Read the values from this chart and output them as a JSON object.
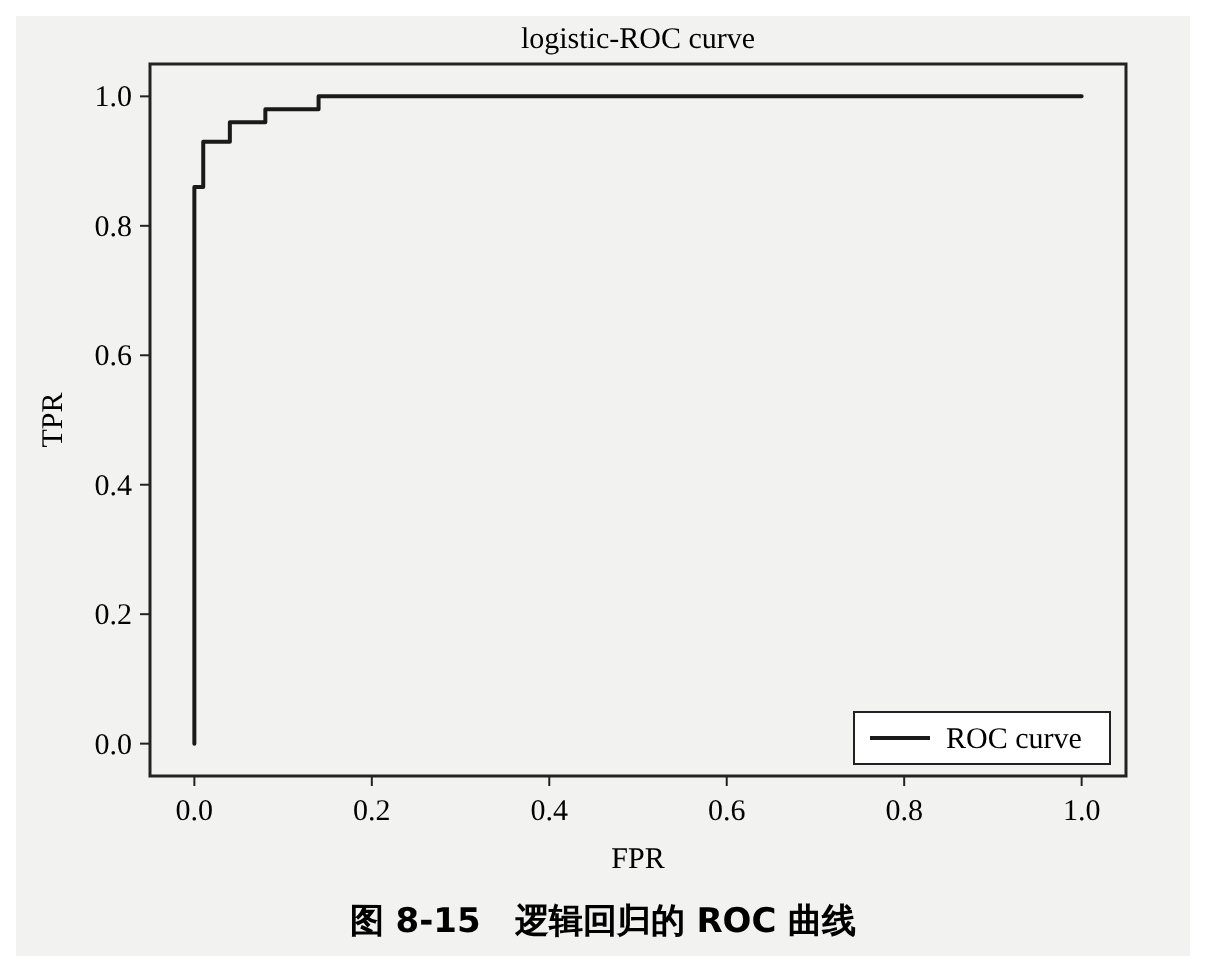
{
  "chart_data": {
    "type": "line",
    "title": "logistic-ROC curve",
    "xlabel": "FPR",
    "ylabel": "TPR",
    "series": [
      {
        "name": "ROC curve",
        "color": "#1a1a1a",
        "x": [
          0,
          0,
          0.01,
          0.01,
          0.04,
          0.04,
          0.08,
          0.08,
          0.14,
          0.14,
          1
        ],
        "values": [
          0,
          0.86,
          0.86,
          0.93,
          0.93,
          0.96,
          0.96,
          0.98,
          0.98,
          1,
          1
        ]
      }
    ],
    "xlim": [
      -0.05,
      1.05
    ],
    "ylim": [
      -0.05,
      1.05
    ],
    "xticks": [
      {
        "value": 0,
        "label": "0.0"
      },
      {
        "value": 0.2,
        "label": "0.2"
      },
      {
        "value": 0.4,
        "label": "0.4"
      },
      {
        "value": 0.6,
        "label": "0.6"
      },
      {
        "value": 0.8,
        "label": "0.8"
      },
      {
        "value": 1,
        "label": "1.0"
      }
    ],
    "yticks": [
      {
        "value": 0,
        "label": "0.0"
      },
      {
        "value": 0.2,
        "label": "0.2"
      },
      {
        "value": 0.4,
        "label": "0.4"
      },
      {
        "value": 0.6,
        "label": "0.6"
      },
      {
        "value": 0.8,
        "label": "0.8"
      },
      {
        "value": 1,
        "label": "1.0"
      }
    ],
    "legend": "bottom right",
    "grid": false,
    "marker": "none",
    "line_style": "solid",
    "annotations": [
      "图 8-15　逻辑回归的 ROC 曲线"
    ]
  }
}
